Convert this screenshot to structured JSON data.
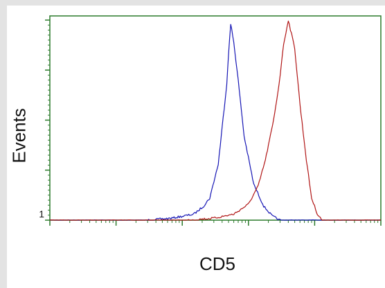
{
  "chart_data": {
    "type": "line",
    "xlabel": "CD5",
    "ylabel": "Events",
    "x_scale": "log",
    "xlim": [
      1,
      100000
    ],
    "ylim": [
      0,
      100
    ],
    "y_tick_labels": [
      "1"
    ],
    "grid": false,
    "series": [
      {
        "color": "#1414b4",
        "x": [
          1,
          30,
          70,
          150,
          210,
          260,
          350,
          430,
          470,
          500,
          540,
          600,
          700,
          860,
          1200,
          1700,
          2300,
          3000,
          100000
        ],
        "values": [
          0,
          0,
          1,
          3,
          7,
          11,
          28,
          56,
          68,
          83,
          98,
          89,
          70,
          42,
          18,
          7,
          2,
          0,
          0
        ]
      },
      {
        "color": "#b01414",
        "x": [
          1,
          120,
          300,
          600,
          1000,
          1400,
          1800,
          2400,
          2900,
          3400,
          4000,
          5000,
          6000,
          7500,
          9000,
          11000,
          13000,
          100000
        ],
        "values": [
          0,
          0,
          1,
          3,
          8,
          17,
          30,
          50,
          68,
          88,
          100,
          86,
          58,
          30,
          11,
          3,
          0,
          0
        ]
      }
    ],
    "line_style": "thin jagged histogram outlines",
    "axis_color": "#2a7a2a"
  }
}
